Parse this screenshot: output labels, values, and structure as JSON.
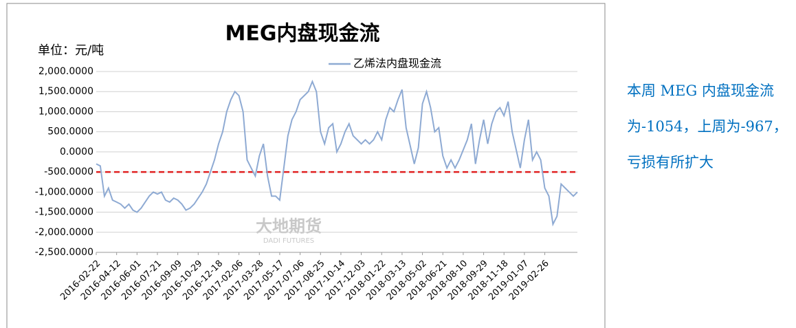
{
  "chart_data": {
    "type": "line",
    "title": "MEG内盘现金流",
    "unit_label": "单位：元/吨",
    "watermark": "大地期货",
    "watermark_sub": "DADI FUTURES",
    "note": "本周 MEG 内盘现金流为-1054，上周为-967，亏损有所扩大",
    "categories": [
      "2016-02-22",
      null,
      null,
      null,
      null,
      "2016-04-12",
      null,
      null,
      null,
      null,
      "2016-06-01",
      null,
      null,
      null,
      null,
      "2016-07-21",
      null,
      null,
      null,
      null,
      "2016-09-09",
      null,
      null,
      null,
      null,
      "2016-10-29",
      null,
      null,
      null,
      null,
      "2016-12-18",
      null,
      null,
      null,
      null,
      "2017-02-06",
      null,
      null,
      null,
      null,
      "2017-03-28",
      null,
      null,
      null,
      null,
      "2017-05-17",
      null,
      null,
      null,
      null,
      "2017-07-06",
      null,
      null,
      null,
      null,
      "2017-08-25",
      null,
      null,
      null,
      null,
      "2017-10-14",
      null,
      null,
      null,
      null,
      "2017-12-03",
      null,
      null,
      null,
      null,
      "2018-01-22",
      null,
      null,
      null,
      null,
      "2018-03-13",
      null,
      null,
      null,
      null,
      "2018-05-02",
      null,
      null,
      null,
      null,
      "2018-06-21",
      null,
      null,
      null,
      null,
      "2018-08-10",
      null,
      null,
      null,
      null,
      "2018-09-29",
      null,
      null,
      null,
      null,
      "2018-11-18",
      null,
      null,
      null,
      null,
      "2019-01-07",
      null,
      null,
      null,
      null,
      "2019-02-26",
      null,
      null,
      null,
      null,
      null,
      null,
      null,
      null
    ],
    "series": [
      {
        "name": "乙烯法内盘现金流",
        "color": "#8eaad3",
        "values": [
          -300,
          -350,
          -1100,
          -900,
          -1200,
          -1250,
          -1300,
          -1400,
          -1300,
          -1450,
          -1500,
          -1400,
          -1250,
          -1100,
          -1000,
          -1050,
          -1000,
          -1200,
          -1250,
          -1150,
          -1200,
          -1300,
          -1450,
          -1400,
          -1300,
          -1150,
          -1000,
          -800,
          -500,
          -200,
          200,
          500,
          1000,
          1300,
          1500,
          1400,
          1000,
          -200,
          -400,
          -600,
          -100,
          200,
          -600,
          -1100,
          -1100,
          -1200,
          -400,
          400,
          800,
          1000,
          1300,
          1400,
          1500,
          1750,
          1500,
          500,
          200,
          600,
          700,
          0,
          200,
          500,
          700,
          400,
          300,
          200,
          300,
          200,
          300,
          500,
          300,
          800,
          1100,
          1000,
          1300,
          1550,
          600,
          150,
          -300,
          100,
          1200,
          1500,
          1100,
          500,
          600,
          -100,
          -400,
          -200,
          -400,
          -200,
          50,
          300,
          700,
          -300,
          300,
          800,
          200,
          700,
          1000,
          1100,
          900,
          1250,
          500,
          50,
          -400,
          300,
          800,
          -200,
          0,
          -200,
          -900,
          -1100,
          -1800,
          -1600,
          -800,
          -900,
          -1000,
          -1100,
          -1000
        ]
      }
    ],
    "reference_line": {
      "value": -500,
      "color": "#e02020"
    },
    "ylim": [
      -2500,
      2000
    ],
    "yticks": [
      {
        "value": -2500,
        "label": "-2,500.0000"
      },
      {
        "value": -2000,
        "label": "-2,000.0000"
      },
      {
        "value": -1500,
        "label": "-1,500.0000"
      },
      {
        "value": -1000,
        "label": "-1,000.0000"
      },
      {
        "value": -500,
        "label": "-500.0000"
      },
      {
        "value": 0,
        "label": "0.0000"
      },
      {
        "value": 500,
        "label": "500.0000"
      },
      {
        "value": 1000,
        "label": "1,000.0000"
      },
      {
        "value": 1500,
        "label": "1,500.0000"
      },
      {
        "value": 2000,
        "label": "2,000.0000"
      }
    ],
    "grid": true
  }
}
